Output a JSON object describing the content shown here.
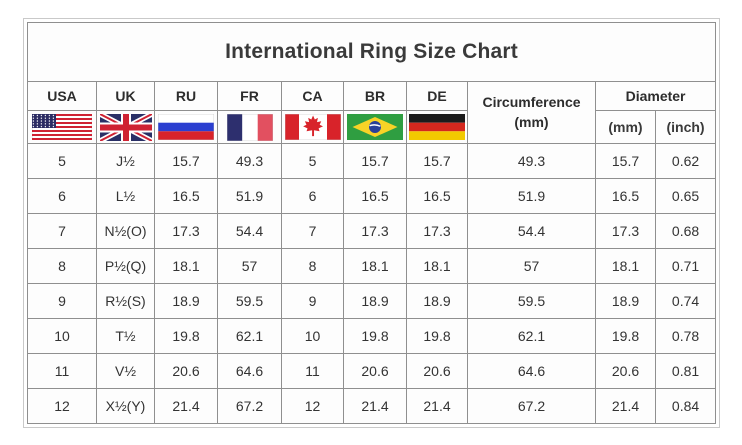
{
  "title": "International Ring Size Chart",
  "header": {
    "countries": [
      {
        "code": "USA",
        "flag": "usa-flag"
      },
      {
        "code": "UK",
        "flag": "uk-flag"
      },
      {
        "code": "RU",
        "flag": "russia-flag"
      },
      {
        "code": "FR",
        "flag": "france-flag"
      },
      {
        "code": "CA",
        "flag": "canada-flag"
      },
      {
        "code": "BR",
        "flag": "brazil-flag"
      },
      {
        "code": "DE",
        "flag": "germany-flag"
      }
    ],
    "circumference": {
      "label": "Circumference",
      "unit": "(mm)"
    },
    "diameter": {
      "label": "Diameter",
      "units": [
        "(mm)",
        "(inch)"
      ]
    }
  },
  "chart_data": {
    "type": "table",
    "title": "International Ring Size Chart",
    "columns": [
      "USA",
      "UK",
      "RU",
      "FR",
      "CA",
      "BR",
      "DE",
      "Circumference (mm)",
      "Diameter (mm)",
      "Diameter (inch)"
    ],
    "rows": [
      [
        "5",
        "J½",
        "15.7",
        "49.3",
        "5",
        "15.7",
        "15.7",
        "49.3",
        "15.7",
        "0.62"
      ],
      [
        "6",
        "L½",
        "16.5",
        "51.9",
        "6",
        "16.5",
        "16.5",
        "51.9",
        "16.5",
        "0.65"
      ],
      [
        "7",
        "N½(O)",
        "17.3",
        "54.4",
        "7",
        "17.3",
        "17.3",
        "54.4",
        "17.3",
        "0.68"
      ],
      [
        "8",
        "P½(Q)",
        "18.1",
        "57",
        "8",
        "18.1",
        "18.1",
        "57",
        "18.1",
        "0.71"
      ],
      [
        "9",
        "R½(S)",
        "18.9",
        "59.5",
        "9",
        "18.9",
        "18.9",
        "59.5",
        "18.9",
        "0.74"
      ],
      [
        "10",
        "T½",
        "19.8",
        "62.1",
        "10",
        "19.8",
        "19.8",
        "62.1",
        "19.8",
        "0.78"
      ],
      [
        "11",
        "V½",
        "20.6",
        "64.6",
        "11",
        "20.6",
        "20.6",
        "64.6",
        "20.6",
        "0.81"
      ],
      [
        "12",
        "X½(Y)",
        "21.4",
        "67.2",
        "12",
        "21.4",
        "21.4",
        "67.2",
        "21.4",
        "0.84"
      ]
    ]
  },
  "colors": {
    "background": "#ffffff",
    "grid_border": "#8f8f8f",
    "outer_border": "#c9c9c9",
    "text": "#333333",
    "title_text": "#1f1f1f"
  }
}
